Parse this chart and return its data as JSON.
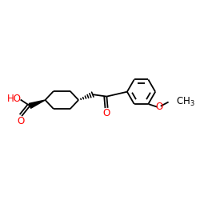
{
  "bg_color": "#ffffff",
  "bond_color": "#000000",
  "oxygen_color": "#ff0000",
  "lw": 1.3,
  "figsize": [
    2.5,
    2.5
  ],
  "dpi": 100,
  "xlim": [
    0,
    10
  ],
  "ylim": [
    0,
    10
  ]
}
